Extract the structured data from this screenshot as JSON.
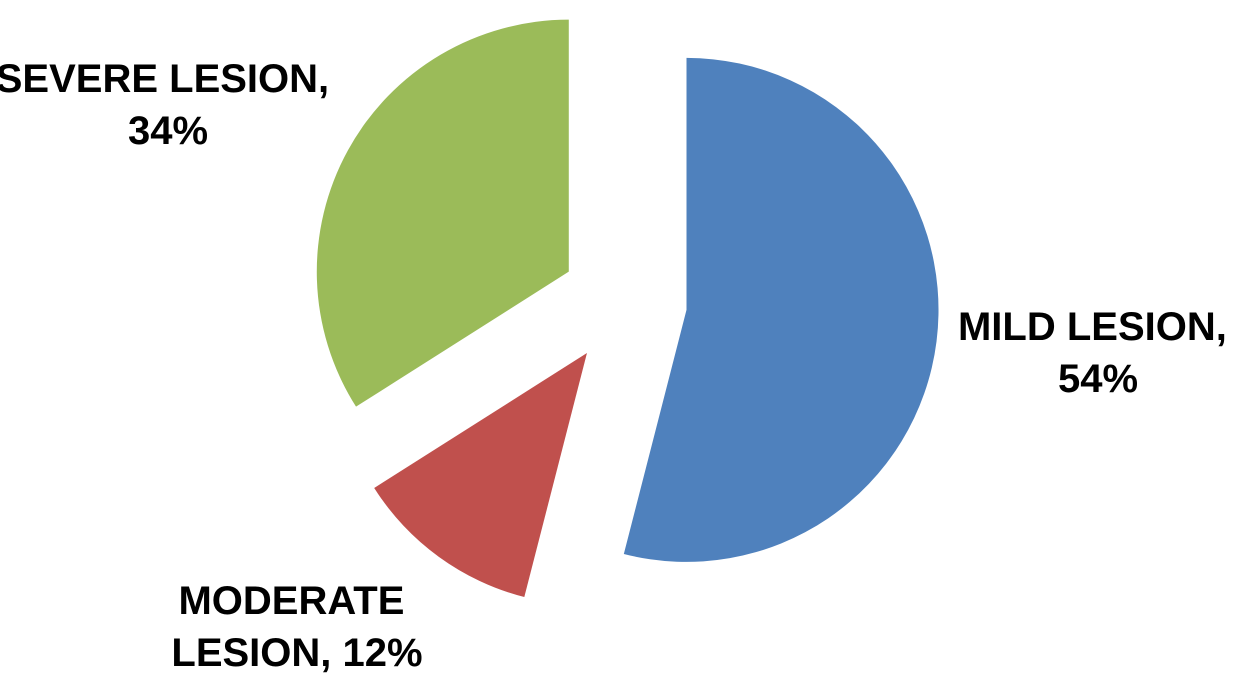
{
  "chart_data": {
    "type": "pie",
    "exploded": true,
    "start": "top",
    "direction": "clockwise",
    "slices": [
      {
        "name": "MILD LESION",
        "value": 54,
        "label_line1": "MILD LESION,",
        "label_line2": "54%",
        "color": "#4F81BD"
      },
      {
        "name": "MODERATE LESION",
        "value": 12,
        "label_line1": "MODERATE",
        "label_line2": "LESION, 12%",
        "color": "#C0504D"
      },
      {
        "name": "SEVERE LESION",
        "value": 34,
        "label_line1": "SEVERE LESION,",
        "label_line2": "34%",
        "color": "#9BBB59"
      }
    ]
  }
}
